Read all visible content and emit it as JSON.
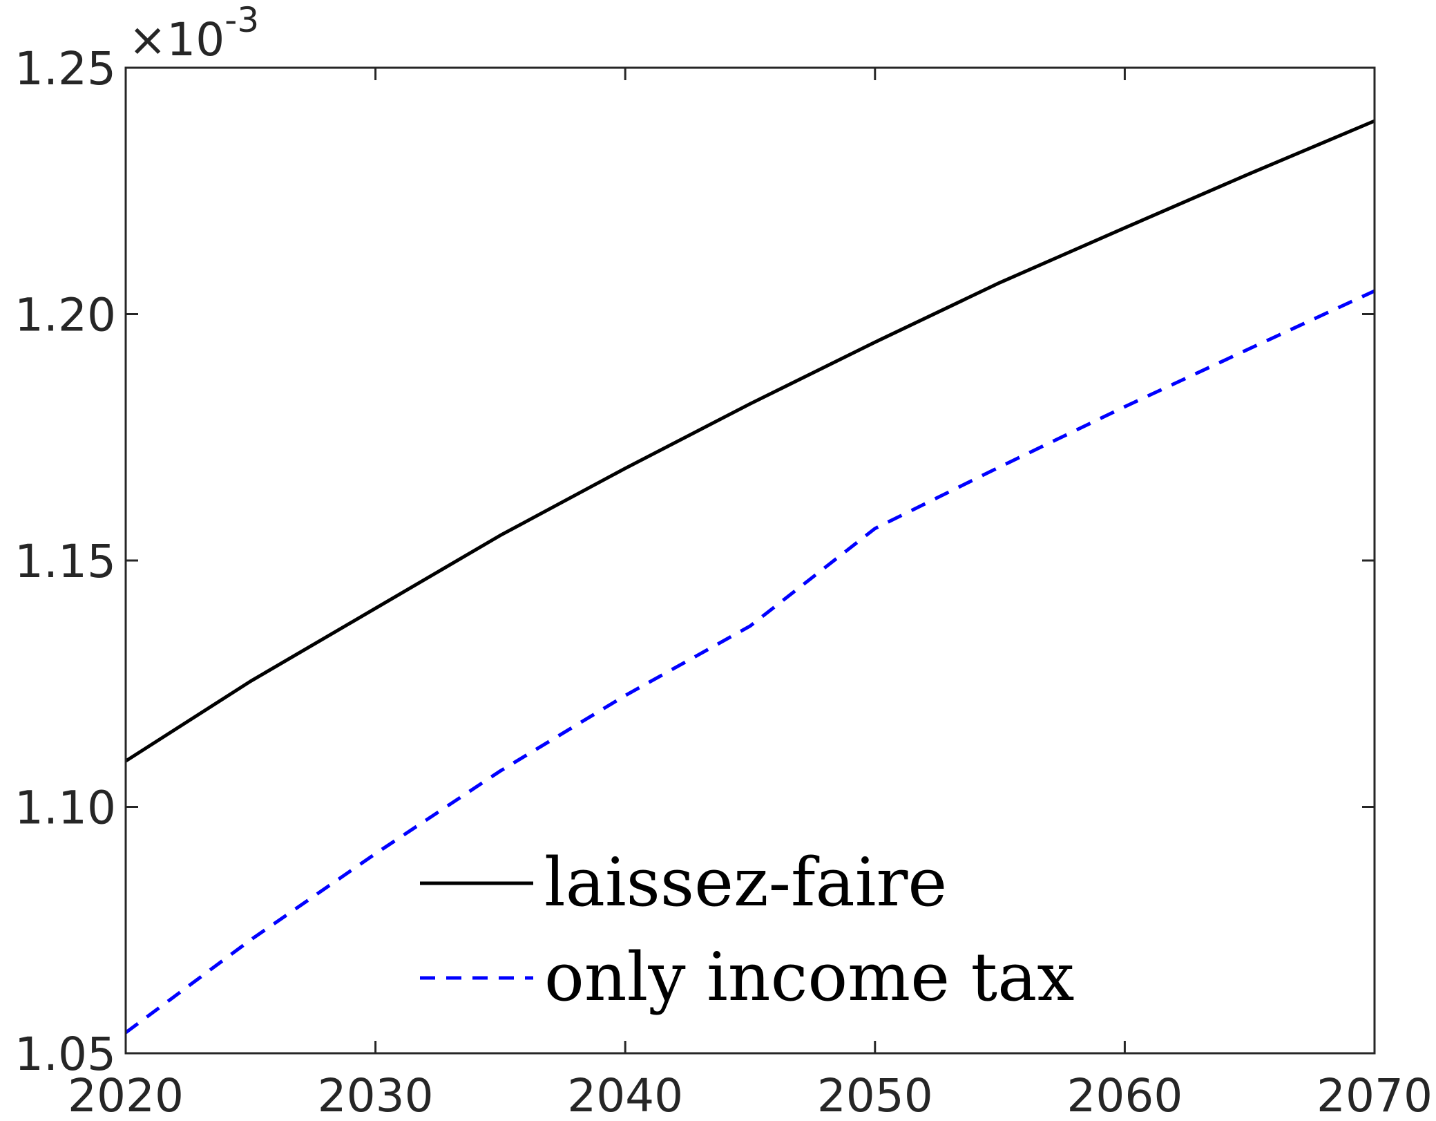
{
  "chart_data": {
    "type": "line",
    "title": "",
    "xlabel": "",
    "ylabel": "",
    "xlim": [
      2020,
      2070
    ],
    "ylim": [
      1.05,
      1.25
    ],
    "y_multiplier": "×10",
    "y_multiplier_exponent": "-3",
    "x_ticks": [
      {
        "value": 2020,
        "label": "2020"
      },
      {
        "value": 2030,
        "label": "2030"
      },
      {
        "value": 2040,
        "label": "2040"
      },
      {
        "value": 2050,
        "label": "2050"
      },
      {
        "value": 2060,
        "label": "2060"
      },
      {
        "value": 2070,
        "label": "2070"
      }
    ],
    "y_ticks": [
      {
        "value": 1.05,
        "label": "1.05"
      },
      {
        "value": 1.1,
        "label": "1.10"
      },
      {
        "value": 1.15,
        "label": "1.15"
      },
      {
        "value": 1.2,
        "label": "1.20"
      },
      {
        "value": 1.25,
        "label": "1.25"
      }
    ],
    "grid": false,
    "legend_position": "bottom-center",
    "series": [
      {
        "name": "laissez-faire",
        "color": "#000000",
        "style": "solid",
        "x": [
          2020,
          2025,
          2030,
          2035,
          2040,
          2045,
          2050,
          2055,
          2060,
          2065,
          2070
        ],
        "y": [
          1.1093,
          1.1255,
          1.1403,
          1.1551,
          1.1687,
          1.1818,
          1.1943,
          1.2064,
          1.2175,
          1.2285,
          1.2392
        ]
      },
      {
        "name": "only income tax",
        "color": "#0000ff",
        "style": "dashed",
        "x": [
          2020,
          2025,
          2030,
          2035,
          2040,
          2045,
          2050,
          2055,
          2060,
          2065,
          2070
        ],
        "y": [
          1.0542,
          1.073,
          1.0905,
          1.1073,
          1.1226,
          1.1367,
          1.1565,
          1.169,
          1.1812,
          1.193,
          1.2047
        ]
      }
    ]
  }
}
